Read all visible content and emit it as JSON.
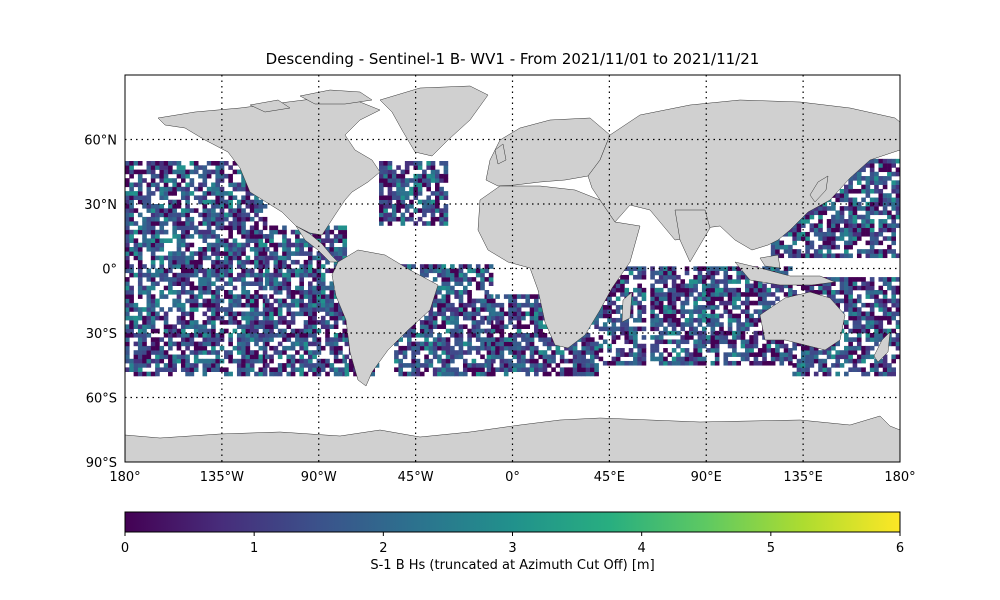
{
  "title": "Descending - Sentinel-1 B- WV1 - From 2021/11/01 to 2021/11/21",
  "map": {
    "projection": "plate-carree",
    "lon_range": [
      -180,
      180
    ],
    "lat_range": [
      -90,
      90
    ],
    "grid": "dotted",
    "lat_ticks": [
      {
        "value": 60,
        "label": "60°N"
      },
      {
        "value": 30,
        "label": "30°N"
      },
      {
        "value": 0,
        "label": "0°"
      },
      {
        "value": -30,
        "label": "30°S"
      },
      {
        "value": -60,
        "label": "60°S"
      },
      {
        "value": -90,
        "label": "90°S"
      }
    ],
    "lon_ticks": [
      {
        "value": -180,
        "label": "180°"
      },
      {
        "value": -135,
        "label": "135°W"
      },
      {
        "value": -90,
        "label": "90°W"
      },
      {
        "value": -45,
        "label": "45°W"
      },
      {
        "value": 0,
        "label": "0°"
      },
      {
        "value": 45,
        "label": "45°E"
      },
      {
        "value": 90,
        "label": "90°E"
      },
      {
        "value": 135,
        "label": "135°E"
      },
      {
        "value": 180,
        "label": "180°"
      }
    ],
    "land_color": "#d0d0d0",
    "data_lat_extent": [
      -50,
      50
    ]
  },
  "colorbar": {
    "colormap": "viridis",
    "min": 0,
    "max": 6,
    "ticks": [
      "0",
      "1",
      "2",
      "3",
      "4",
      "5",
      "6"
    ],
    "label": "S-1 B Hs (truncated at Azimuth Cut Off) [m]"
  }
}
